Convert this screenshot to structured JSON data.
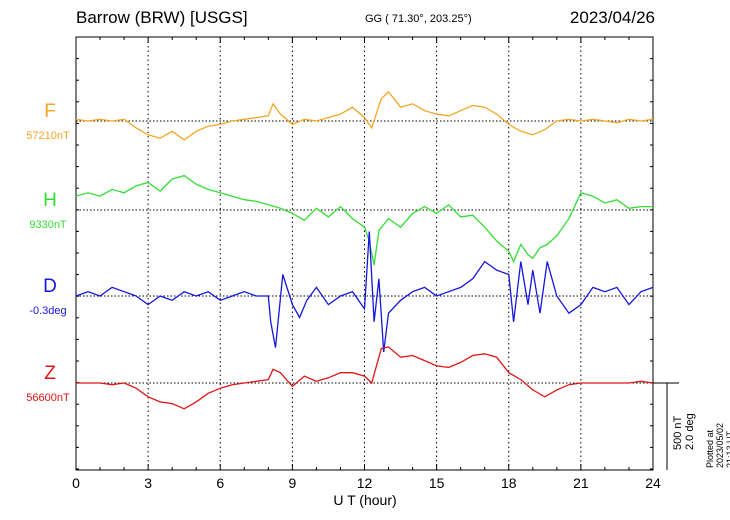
{
  "header": {
    "title": "Barrow (BRW)  [USGS]",
    "coords": "GG ( 71.30°, 203.25°)",
    "date": "2023/04/26"
  },
  "plotted_note": "Plotted at 2023/05/02 21:13 UT",
  "scale": {
    "nt": "500 nT",
    "deg": "2.0 deg"
  },
  "chart_data": {
    "type": "line",
    "xlabel": "U T (hour)",
    "xlim": [
      0,
      24
    ],
    "xticks": [
      "0",
      "3",
      "6",
      "9",
      "12",
      "15",
      "18",
      "21",
      "24"
    ],
    "scale_nt_per_division": 500,
    "scale_deg_per_division": 2.0,
    "series": [
      {
        "name": "F",
        "baseline": "57210nT",
        "color": "#f5a623",
        "x": [
          0,
          0.5,
          1,
          1.5,
          2,
          2.5,
          3,
          3.5,
          4,
          4.5,
          5,
          5.5,
          6,
          6.5,
          7,
          7.5,
          8,
          8.2,
          8.5,
          9,
          9.5,
          10,
          10.5,
          11,
          11.5,
          12,
          12.3,
          12.7,
          13,
          13.5,
          14,
          14.5,
          15,
          15.5,
          16,
          16.5,
          17,
          17.5,
          18,
          18.5,
          19,
          19.5,
          20,
          20.5,
          21,
          21.5,
          22,
          22.5,
          23,
          23.5,
          24
        ],
        "y": [
          10,
          0,
          10,
          0,
          10,
          -40,
          -80,
          -100,
          -60,
          -110,
          -60,
          -30,
          -20,
          0,
          10,
          20,
          30,
          100,
          40,
          -20,
          10,
          0,
          20,
          40,
          80,
          20,
          -40,
          130,
          170,
          80,
          100,
          60,
          40,
          30,
          60,
          90,
          80,
          40,
          -20,
          -60,
          -80,
          -50,
          0,
          10,
          0,
          10,
          0,
          -10,
          10,
          0,
          10
        ]
      },
      {
        "name": "H",
        "baseline": "9330nT",
        "color": "#33dd33",
        "x": [
          0,
          0.5,
          1,
          1.5,
          2,
          2.5,
          3,
          3.5,
          4,
          4.5,
          5,
          5.5,
          6,
          6.5,
          7,
          7.5,
          8,
          8.5,
          9,
          9.5,
          10,
          10.5,
          11,
          11.5,
          12,
          12.2,
          12.4,
          12.6,
          13,
          13.5,
          14,
          14.5,
          15,
          15.5,
          16,
          16.5,
          17,
          17.5,
          18,
          18.2,
          18.5,
          18.8,
          19,
          19.3,
          19.6,
          20,
          20.5,
          21,
          21.5,
          22,
          22.5,
          23,
          23.5,
          24
        ],
        "y": [
          80,
          100,
          80,
          120,
          100,
          140,
          160,
          110,
          180,
          200,
          150,
          120,
          100,
          80,
          60,
          50,
          30,
          10,
          -20,
          -60,
          10,
          -40,
          20,
          -50,
          -100,
          -180,
          -320,
          -120,
          -50,
          -100,
          -20,
          20,
          -20,
          30,
          -40,
          -30,
          -100,
          -180,
          -240,
          -300,
          -200,
          -260,
          -280,
          -220,
          -200,
          -150,
          -50,
          100,
          80,
          40,
          60,
          10,
          20,
          20
        ]
      },
      {
        "name": "D",
        "baseline": "-0.3deg",
        "color": "#1515e0",
        "x": [
          0,
          0.5,
          1,
          1.5,
          2,
          2.5,
          3,
          3.5,
          4,
          4.5,
          5,
          5.5,
          6,
          6.5,
          7,
          7.5,
          8,
          8.1,
          8.3,
          8.6,
          9,
          9.3,
          9.6,
          10,
          10.5,
          11,
          11.5,
          12,
          12.2,
          12.4,
          12.6,
          12.8,
          13,
          13.5,
          14,
          14.5,
          15,
          15.5,
          16,
          16.5,
          17,
          17.5,
          18,
          18.2,
          18.5,
          18.8,
          19,
          19.3,
          19.6,
          20,
          20.5,
          21,
          21.5,
          22,
          22.5,
          23,
          23.5,
          24
        ],
        "y": [
          0,
          0.1,
          0,
          0.2,
          0.1,
          0,
          -0.2,
          0,
          -0.1,
          0.1,
          0,
          0.1,
          -0.1,
          0,
          0.1,
          0,
          0,
          -0.6,
          -1.2,
          0.5,
          -0.2,
          -0.5,
          -0.1,
          0.2,
          -0.2,
          0,
          0.1,
          -0.3,
          1.5,
          -0.6,
          0.4,
          -1.3,
          -0.4,
          -0.1,
          0.1,
          0.2,
          0,
          0.1,
          0.2,
          0.4,
          0.8,
          0.6,
          0.5,
          -0.6,
          0.8,
          -0.2,
          0.6,
          -0.4,
          0.8,
          0,
          -0.4,
          -0.2,
          0.2,
          0.1,
          0.2,
          -0.2,
          0.1,
          0.2
        ]
      },
      {
        "name": "Z",
        "baseline": "56600nT",
        "color": "#e01515",
        "x": [
          0,
          0.5,
          1,
          1.5,
          2,
          2.5,
          3,
          3.5,
          4,
          4.5,
          5,
          5.5,
          6,
          6.5,
          7,
          7.5,
          8,
          8.2,
          8.5,
          9,
          9.5,
          10,
          10.5,
          11,
          11.5,
          12,
          12.3,
          12.7,
          13,
          13.5,
          14,
          14.5,
          15,
          15.5,
          16,
          16.5,
          17,
          17.5,
          18,
          18.5,
          19,
          19.5,
          20,
          20.5,
          21,
          21.5,
          22,
          22.5,
          23,
          23.5,
          24
        ],
        "y": [
          0,
          0,
          0,
          -10,
          0,
          -30,
          -80,
          -110,
          -120,
          -150,
          -110,
          -60,
          -30,
          -10,
          0,
          10,
          20,
          80,
          60,
          -20,
          40,
          10,
          30,
          60,
          60,
          40,
          0,
          200,
          210,
          150,
          160,
          130,
          100,
          90,
          120,
          160,
          170,
          150,
          60,
          20,
          -40,
          -80,
          -40,
          -10,
          0,
          0,
          0,
          0,
          0,
          10,
          0
        ]
      }
    ]
  }
}
